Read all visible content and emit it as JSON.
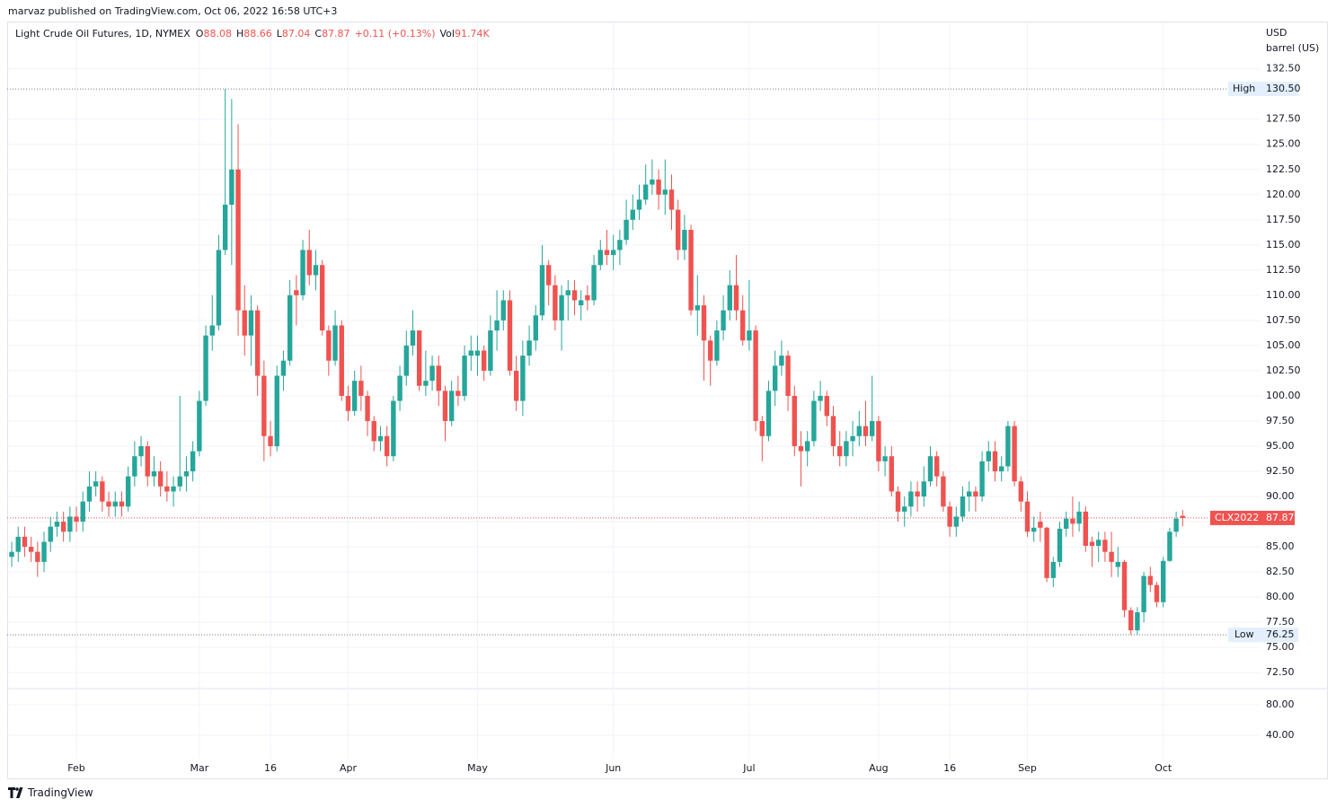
{
  "header": {
    "text": "marvaz published on TradingView.com, Oct 06, 2022 16:58 UTC+3"
  },
  "chart_data": {
    "type": "candlestick",
    "title": "Light Crude Oil Futures, 1D, NYMEX",
    "legend": {
      "open_prefix": "O",
      "high_prefix": "H",
      "low_prefix": "L",
      "close_prefix": "C",
      "change": "+0.11 (+0.13%)",
      "volume_prefix": "Vol",
      "volume": "91.74K"
    },
    "currency": "USD",
    "unit": "barrel (US)",
    "symbol": "CLX2022",
    "up_color": "#26a69a",
    "down_color": "#ef5350",
    "open": [
      84.0,
      84.5,
      86.0,
      85.0,
      84.5,
      83.5,
      85.5,
      87.0,
      87.5,
      86.5,
      88.0,
      87.5,
      89.5,
      91.0,
      91.5,
      89.5,
      89.0,
      89.5,
      89.0,
      92.0,
      94.0,
      95.0,
      92.0,
      92.5,
      91.0,
      90.5,
      91.0,
      92.0,
      92.5,
      94.5,
      99.5,
      106.0,
      107.0,
      114.5,
      119.0,
      122.5,
      108.5,
      106.0,
      108.5,
      102.0,
      96.0,
      95.0,
      102.0,
      103.5,
      110.5,
      110.0,
      114.5,
      112.0,
      113.0,
      106.5,
      103.5,
      107.0,
      100.0,
      98.5,
      101.5,
      100.0,
      97.5,
      95.5,
      96.0,
      94.0,
      99.5,
      102.0,
      105.0,
      106.5,
      101.0,
      101.5,
      103.0,
      100.5,
      97.5,
      100.5,
      100.0,
      104.0,
      104.0,
      104.5,
      102.5,
      106.5,
      107.5,
      109.5,
      102.5,
      99.5,
      104.0,
      105.5,
      108.0,
      113.0,
      111.0,
      107.5,
      110.0,
      110.5,
      109.0,
      110.0,
      109.5,
      113.0,
      114.5,
      114.0,
      114.5,
      115.5,
      117.5,
      118.5,
      119.5,
      121.0,
      121.5,
      120.0,
      120.5,
      118.5,
      114.5,
      116.5,
      108.5,
      109.0,
      105.5,
      103.5,
      106.5,
      108.5,
      111.0,
      108.5,
      105.5,
      106.5,
      97.5,
      96.0,
      100.5,
      103.0,
      104.0,
      100.0,
      95.0,
      94.5,
      95.5,
      99.5,
      100.0,
      98.0,
      95.0,
      94.0,
      95.5,
      96.0,
      97.0,
      96.0,
      97.5,
      93.5,
      94.0,
      90.5,
      88.5,
      89.0,
      90.5,
      90.0,
      91.5,
      94.0,
      92.0,
      89.0,
      87.0,
      88.0,
      90.0,
      90.5,
      90.0,
      93.5,
      94.5,
      92.5,
      93.0,
      97.0,
      91.5,
      89.5,
      86.5,
      87.5,
      86.9,
      81.9,
      83.5,
      86.8,
      87.8,
      87.3,
      88.5,
      85.5,
      85.1,
      85.7,
      84.5,
      83.0,
      83.5,
      78.7,
      76.7,
      78.5,
      82.1,
      81.2,
      79.5,
      83.6,
      86.5,
      88.08
    ],
    "high": [
      85.5,
      87.0,
      87.0,
      86.0,
      85.5,
      86.5,
      88.0,
      88.5,
      88.5,
      89.0,
      89.0,
      90.5,
      92.5,
      92.5,
      92.0,
      90.5,
      90.5,
      90.5,
      93.0,
      95.5,
      96.0,
      95.5,
      94.0,
      93.5,
      92.5,
      92.0,
      100.0,
      94.0,
      95.5,
      100.5,
      107.0,
      110.0,
      116.0,
      130.5,
      129.5,
      127.0,
      111.0,
      110.0,
      109.0,
      103.5,
      97.5,
      103.0,
      104.5,
      111.5,
      112.0,
      115.5,
      116.5,
      114.5,
      113.5,
      107.0,
      108.5,
      107.5,
      101.0,
      102.5,
      103.0,
      100.5,
      98.0,
      97.0,
      97.0,
      100.0,
      103.0,
      106.5,
      108.5,
      106.5,
      104.5,
      104.0,
      104.0,
      101.0,
      101.5,
      102.0,
      105.0,
      106.0,
      106.0,
      105.0,
      108.0,
      110.5,
      110.5,
      110.5,
      104.0,
      105.5,
      107.0,
      109.0,
      115.0,
      113.5,
      112.0,
      111.0,
      111.5,
      111.5,
      110.5,
      111.0,
      114.0,
      115.5,
      116.5,
      116.0,
      116.5,
      119.5,
      120.0,
      121.0,
      123.0,
      123.5,
      122.5,
      123.5,
      122.0,
      119.5,
      118.0,
      117.0,
      112.0,
      110.0,
      106.0,
      107.5,
      110.0,
      112.5,
      114.0,
      110.0,
      111.5,
      107.0,
      98.0,
      101.5,
      104.5,
      105.5,
      104.5,
      101.0,
      96.5,
      96.5,
      100.5,
      101.5,
      100.5,
      99.0,
      96.5,
      96.5,
      97.5,
      98.5,
      99.5,
      102.0,
      98.0,
      95.0,
      95.0,
      91.0,
      90.0,
      91.5,
      91.5,
      93.0,
      95.0,
      94.5,
      92.5,
      89.5,
      89.0,
      91.0,
      91.5,
      91.0,
      94.5,
      95.5,
      95.5,
      94.0,
      97.5,
      97.5,
      92.0,
      90.5,
      88.0,
      88.5,
      87.0,
      84.0,
      87.5,
      88.5,
      90.0,
      89.5,
      89.0,
      86.0,
      86.5,
      86.5,
      86.5,
      85.0,
      83.7,
      79.0,
      79.0,
      82.5,
      83.0,
      81.5,
      84.0,
      86.9,
      88.5,
      88.66
    ],
    "low": [
      83.0,
      83.5,
      84.0,
      83.5,
      82.0,
      82.5,
      84.5,
      86.0,
      85.5,
      85.5,
      86.5,
      86.5,
      88.5,
      90.0,
      88.5,
      88.0,
      88.0,
      88.0,
      88.5,
      91.0,
      93.0,
      91.0,
      91.0,
      90.0,
      89.5,
      89.0,
      90.5,
      90.5,
      91.5,
      94.0,
      99.0,
      104.5,
      106.5,
      114.0,
      113.0,
      106.0,
      104.0,
      103.0,
      100.0,
      93.5,
      94.0,
      94.5,
      100.5,
      103.0,
      107.0,
      109.5,
      111.0,
      110.5,
      106.0,
      102.0,
      103.0,
      99.5,
      97.5,
      98.0,
      98.5,
      96.0,
      94.5,
      94.5,
      93.0,
      93.5,
      98.5,
      101.0,
      104.0,
      100.5,
      100.0,
      100.5,
      99.0,
      95.5,
      97.0,
      99.0,
      99.5,
      102.5,
      102.0,
      101.5,
      102.0,
      104.5,
      106.5,
      102.0,
      98.5,
      98.0,
      103.0,
      104.5,
      107.5,
      109.0,
      106.5,
      104.5,
      107.5,
      108.0,
      107.5,
      108.5,
      109.0,
      112.5,
      113.0,
      112.5,
      113.0,
      115.0,
      116.5,
      117.5,
      119.0,
      120.0,
      118.5,
      118.0,
      116.5,
      113.5,
      113.5,
      108.0,
      106.0,
      101.5,
      101.0,
      103.0,
      105.5,
      107.5,
      107.5,
      105.0,
      104.5,
      96.5,
      93.5,
      95.5,
      99.0,
      102.0,
      98.5,
      94.0,
      91.0,
      93.0,
      95.0,
      98.5,
      97.0,
      94.0,
      93.0,
      93.0,
      94.0,
      95.0,
      95.0,
      95.5,
      92.5,
      92.0,
      90.0,
      87.5,
      87.0,
      88.0,
      88.5,
      89.0,
      91.0,
      91.0,
      88.5,
      86.0,
      86.0,
      87.5,
      88.5,
      88.5,
      89.5,
      92.5,
      91.5,
      91.5,
      92.5,
      91.0,
      88.5,
      86.0,
      85.5,
      85.5,
      81.5,
      81.0,
      83.0,
      86.0,
      86.0,
      86.5,
      84.5,
      83.0,
      83.5,
      83.5,
      82.0,
      82.0,
      78.0,
      76.25,
      76.3,
      77.5,
      80.5,
      79.0,
      79.0,
      83.5,
      86.0,
      87.04
    ],
    "close": [
      84.5,
      86.0,
      85.0,
      84.5,
      83.5,
      85.5,
      87.0,
      87.5,
      86.5,
      88.0,
      87.5,
      89.5,
      91.0,
      91.5,
      89.5,
      89.0,
      89.5,
      89.0,
      92.0,
      94.0,
      95.0,
      92.0,
      92.5,
      91.0,
      90.5,
      91.0,
      92.0,
      92.5,
      94.5,
      99.5,
      106.0,
      107.0,
      114.5,
      119.0,
      122.5,
      108.5,
      106.0,
      108.5,
      102.0,
      96.0,
      95.0,
      102.0,
      103.5,
      110.0,
      110.0,
      114.5,
      112.0,
      113.0,
      106.5,
      103.5,
      107.0,
      100.0,
      98.5,
      101.5,
      100.0,
      97.5,
      95.5,
      96.0,
      94.0,
      99.5,
      102.0,
      105.0,
      106.5,
      101.0,
      101.5,
      103.0,
      100.5,
      97.5,
      100.5,
      100.0,
      104.0,
      104.5,
      104.5,
      102.5,
      106.5,
      107.5,
      109.5,
      102.5,
      99.5,
      104.0,
      105.5,
      108.0,
      113.0,
      111.0,
      107.5,
      110.0,
      110.5,
      109.5,
      109.5,
      109.5,
      113.0,
      114.5,
      114.0,
      114.5,
      115.5,
      117.5,
      118.5,
      119.5,
      121.0,
      121.5,
      120.0,
      120.5,
      118.5,
      114.5,
      116.5,
      108.5,
      109.0,
      105.5,
      103.5,
      106.5,
      108.5,
      111.0,
      108.5,
      105.5,
      106.5,
      97.5,
      96.0,
      100.5,
      103.0,
      104.0,
      100.0,
      95.0,
      94.5,
      95.5,
      99.5,
      100.0,
      98.0,
      95.0,
      94.0,
      95.5,
      96.0,
      97.0,
      96.0,
      97.5,
      93.5,
      94.0,
      90.5,
      88.5,
      89.0,
      90.5,
      90.0,
      91.5,
      94.0,
      92.0,
      89.0,
      87.0,
      88.0,
      90.0,
      90.5,
      90.0,
      93.5,
      94.5,
      92.5,
      93.0,
      97.0,
      91.5,
      89.5,
      86.5,
      86.9,
      86.9,
      81.9,
      83.5,
      86.8,
      87.8,
      87.3,
      88.5,
      85.1,
      85.1,
      85.7,
      84.5,
      83.5,
      83.5,
      78.7,
      76.7,
      78.5,
      82.1,
      81.2,
      79.5,
      83.6,
      86.5,
      87.8,
      87.87
    ],
    "xlim": [
      -0.7,
      192.9
    ],
    "xticks": [
      {
        "value": 10,
        "label": "Feb"
      },
      {
        "value": 29,
        "label": "Mar"
      },
      {
        "value": 40,
        "label": "16"
      },
      {
        "value": 52,
        "label": "Apr"
      },
      {
        "value": 72,
        "label": "May"
      },
      {
        "value": 93,
        "label": "Jun"
      },
      {
        "value": 114,
        "label": "Jul"
      },
      {
        "value": 134,
        "label": "Aug"
      },
      {
        "value": 145,
        "label": "16"
      },
      {
        "value": 157,
        "label": "Sep"
      },
      {
        "value": 178,
        "label": "Oct"
      }
    ],
    "ylim": [
      71.0,
      137.2
    ],
    "yticks": [
      {
        "value": 72.5,
        "label": "72.50"
      },
      {
        "value": 75,
        "label": "75.00"
      },
      {
        "value": 77.5,
        "label": "77.50"
      },
      {
        "value": 80,
        "label": "80.00"
      },
      {
        "value": 82.5,
        "label": "82.50"
      },
      {
        "value": 85,
        "label": "85.00"
      },
      {
        "value": 87.5,
        "label": "87.50"
      },
      {
        "value": 90,
        "label": "90.00"
      },
      {
        "value": 92.5,
        "label": "92.50"
      },
      {
        "value": 95,
        "label": "95.00"
      },
      {
        "value": 97.5,
        "label": "97.50"
      },
      {
        "value": 100,
        "label": "100.00"
      },
      {
        "value": 102.5,
        "label": "102.50"
      },
      {
        "value": 105,
        "label": "105.00"
      },
      {
        "value": 107.5,
        "label": "107.50"
      },
      {
        "value": 110,
        "label": "110.00"
      },
      {
        "value": 112.5,
        "label": "112.50"
      },
      {
        "value": 115,
        "label": "115.00"
      },
      {
        "value": 117.5,
        "label": "117.50"
      },
      {
        "value": 120,
        "label": "120.00"
      },
      {
        "value": 122.5,
        "label": "122.50"
      },
      {
        "value": 125,
        "label": "125.00"
      },
      {
        "value": 127.5,
        "label": "127.50"
      },
      {
        "value": 132.5,
        "label": "132.50"
      }
    ],
    "grid": true,
    "high_marker": {
      "label": "High",
      "value": 130.5,
      "value_label": "130.50"
    },
    "low_marker": {
      "label": "Low",
      "value": 76.25
    },
    "volume_pane": {
      "ylim": [
        0,
        100
      ],
      "yticks": [
        {
          "value": 80,
          "label": "80.00"
        },
        {
          "value": 40,
          "label": "40.00"
        }
      ]
    }
  },
  "footer": {
    "brand": "TradingView"
  }
}
